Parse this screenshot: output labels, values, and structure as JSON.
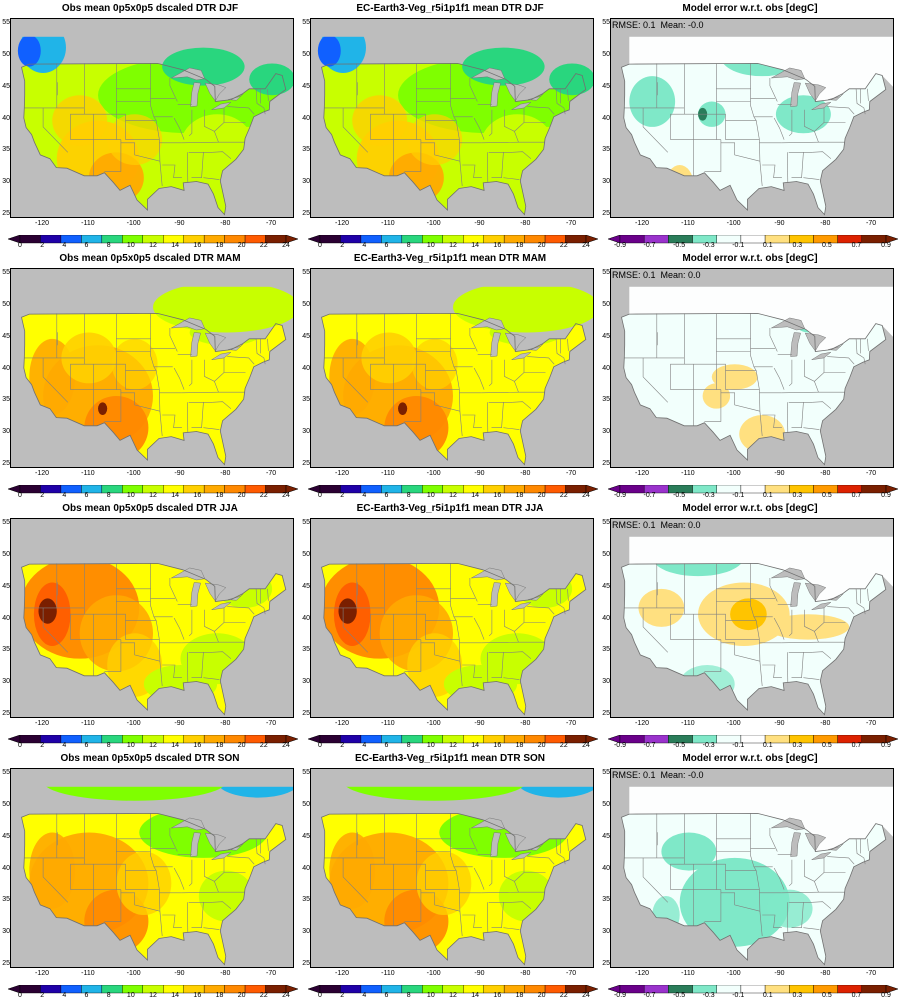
{
  "colors": {
    "dtr": [
      "#2b0033",
      "#1f00a8",
      "#1060ff",
      "#20b4e8",
      "#29d67e",
      "#7fff00",
      "#c8ff00",
      "#ffff00",
      "#ffd000",
      "#ffaa00",
      "#ff8800",
      "#ff5a00",
      "#7a1f00"
    ],
    "err": [
      "#6a008a",
      "#9a33cc",
      "#2a7d5a",
      "#7fe8c8",
      "#f2fffc",
      "#ffffff",
      "#ffe080",
      "#ffc400",
      "#ff9a00",
      "#dd2200",
      "#7a1f00"
    ],
    "missing": "#bdbdbd"
  },
  "chart_data": [
    {
      "type": "heatmap",
      "title": "Obs mean 0p5x0p5 dscaled DTR DJF",
      "season": "DJF",
      "kind": "field",
      "xticks": [
        "-120",
        "-110",
        "-100",
        "-90",
        "-80",
        "-70"
      ],
      "yticks": [
        "55",
        "50",
        "45",
        "40",
        "35",
        "30",
        "25"
      ],
      "colorbar": {
        "ticks": [
          "0",
          "2",
          "4",
          "6",
          "8",
          "10",
          "12",
          "14",
          "16",
          "18",
          "20",
          "22",
          "24"
        ]
      }
    },
    {
      "type": "heatmap",
      "title": "EC-Earth3-Veg_r5i1p1f1 mean DTR DJF",
      "season": "DJF",
      "kind": "field",
      "xticks": [
        "-120",
        "-110",
        "-100",
        "-90",
        "-80",
        "-70"
      ],
      "yticks": [
        "55",
        "50",
        "45",
        "40",
        "35",
        "30",
        "25"
      ],
      "colorbar": {
        "ticks": [
          "0",
          "2",
          "4",
          "6",
          "8",
          "10",
          "12",
          "14",
          "16",
          "18",
          "20",
          "22",
          "24"
        ]
      }
    },
    {
      "type": "heatmap",
      "title": "Model error w.r.t. obs [degC]",
      "season": "DJF",
      "kind": "error",
      "rmse": "RMSE: 0.1",
      "mean": "Mean: -0.0",
      "xticks": [
        "-120",
        "-110",
        "-100",
        "-90",
        "-80",
        "-70"
      ],
      "yticks": [
        "55",
        "50",
        "45",
        "40",
        "35",
        "30",
        "25"
      ],
      "colorbar": {
        "ticks": [
          "-0.9",
          "-0.7",
          "-0.5",
          "-0.3",
          "-0.1",
          "0.1",
          "0.3",
          "0.5",
          "0.7",
          "0.9"
        ]
      }
    },
    {
      "type": "heatmap",
      "title": "Obs mean 0p5x0p5 dscaled DTR MAM",
      "season": "MAM",
      "kind": "field",
      "xticks": [
        "-120",
        "-110",
        "-100",
        "-90",
        "-80",
        "-70"
      ],
      "yticks": [
        "55",
        "50",
        "45",
        "40",
        "35",
        "30",
        "25"
      ],
      "colorbar": {
        "ticks": [
          "0",
          "2",
          "4",
          "6",
          "8",
          "10",
          "12",
          "14",
          "16",
          "18",
          "20",
          "22",
          "24"
        ]
      }
    },
    {
      "type": "heatmap",
      "title": "EC-Earth3-Veg_r5i1p1f1 mean DTR MAM",
      "season": "MAM",
      "kind": "field",
      "xticks": [
        "-120",
        "-110",
        "-100",
        "-90",
        "-80",
        "-70"
      ],
      "yticks": [
        "55",
        "50",
        "45",
        "40",
        "35",
        "30",
        "25"
      ],
      "colorbar": {
        "ticks": [
          "0",
          "2",
          "4",
          "6",
          "8",
          "10",
          "12",
          "14",
          "16",
          "18",
          "20",
          "22",
          "24"
        ]
      }
    },
    {
      "type": "heatmap",
      "title": "Model error w.r.t. obs [degC]",
      "season": "MAM",
      "kind": "error",
      "rmse": "RMSE: 0.1",
      "mean": "Mean: 0.0",
      "xticks": [
        "-120",
        "-110",
        "-100",
        "-90",
        "-80",
        "-70"
      ],
      "yticks": [
        "55",
        "50",
        "45",
        "40",
        "35",
        "30",
        "25"
      ],
      "colorbar": {
        "ticks": [
          "-0.9",
          "-0.7",
          "-0.5",
          "-0.3",
          "-0.1",
          "0.1",
          "0.3",
          "0.5",
          "0.7",
          "0.9"
        ]
      }
    },
    {
      "type": "heatmap",
      "title": "Obs mean 0p5x0p5 dscaled DTR JJA",
      "season": "JJA",
      "kind": "field",
      "xticks": [
        "-120",
        "-110",
        "-100",
        "-90",
        "-80",
        "-70"
      ],
      "yticks": [
        "55",
        "50",
        "45",
        "40",
        "35",
        "30",
        "25"
      ],
      "colorbar": {
        "ticks": [
          "0",
          "2",
          "4",
          "6",
          "8",
          "10",
          "12",
          "14",
          "16",
          "18",
          "20",
          "22",
          "24"
        ]
      }
    },
    {
      "type": "heatmap",
      "title": "EC-Earth3-Veg_r5i1p1f1 mean DTR JJA",
      "season": "JJA",
      "kind": "field",
      "xticks": [
        "-120",
        "-110",
        "-100",
        "-90",
        "-80",
        "-70"
      ],
      "yticks": [
        "55",
        "50",
        "45",
        "40",
        "35",
        "30",
        "25"
      ],
      "colorbar": {
        "ticks": [
          "0",
          "2",
          "4",
          "6",
          "8",
          "10",
          "12",
          "14",
          "16",
          "18",
          "20",
          "22",
          "24"
        ]
      }
    },
    {
      "type": "heatmap",
      "title": "Model error w.r.t. obs [degC]",
      "season": "JJA",
      "kind": "error",
      "rmse": "RMSE: 0.1",
      "mean": "Mean: 0.0",
      "xticks": [
        "-120",
        "-110",
        "-100",
        "-90",
        "-80",
        "-70"
      ],
      "yticks": [
        "55",
        "50",
        "45",
        "40",
        "35",
        "30",
        "25"
      ],
      "colorbar": {
        "ticks": [
          "-0.9",
          "-0.7",
          "-0.5",
          "-0.3",
          "-0.1",
          "0.1",
          "0.3",
          "0.5",
          "0.7",
          "0.9"
        ]
      }
    },
    {
      "type": "heatmap",
      "title": "Obs mean 0p5x0p5 dscaled DTR SON",
      "season": "SON",
      "kind": "field",
      "xticks": [
        "-120",
        "-110",
        "-100",
        "-90",
        "-80",
        "-70"
      ],
      "yticks": [
        "55",
        "50",
        "45",
        "40",
        "35",
        "30",
        "25"
      ],
      "colorbar": {
        "ticks": [
          "0",
          "2",
          "4",
          "6",
          "8",
          "10",
          "12",
          "14",
          "16",
          "18",
          "20",
          "22",
          "24"
        ]
      }
    },
    {
      "type": "heatmap",
      "title": "EC-Earth3-Veg_r5i1p1f1 mean DTR SON",
      "season": "SON",
      "kind": "field",
      "xticks": [
        "-120",
        "-110",
        "-100",
        "-90",
        "-80",
        "-70"
      ],
      "yticks": [
        "55",
        "50",
        "45",
        "40",
        "35",
        "30",
        "25"
      ],
      "colorbar": {
        "ticks": [
          "0",
          "2",
          "4",
          "6",
          "8",
          "10",
          "12",
          "14",
          "16",
          "18",
          "20",
          "22",
          "24"
        ]
      }
    },
    {
      "type": "heatmap",
      "title": "Model error w.r.t. obs [degC]",
      "season": "SON",
      "kind": "error",
      "rmse": "RMSE: 0.1",
      "mean": "Mean: -0.0",
      "xticks": [
        "-120",
        "-110",
        "-100",
        "-90",
        "-80",
        "-70"
      ],
      "yticks": [
        "55",
        "50",
        "45",
        "40",
        "35",
        "30",
        "25"
      ],
      "colorbar": {
        "ticks": [
          "-0.9",
          "-0.7",
          "-0.5",
          "-0.3",
          "-0.1",
          "0.1",
          "0.3",
          "0.5",
          "0.7",
          "0.9"
        ]
      }
    }
  ]
}
